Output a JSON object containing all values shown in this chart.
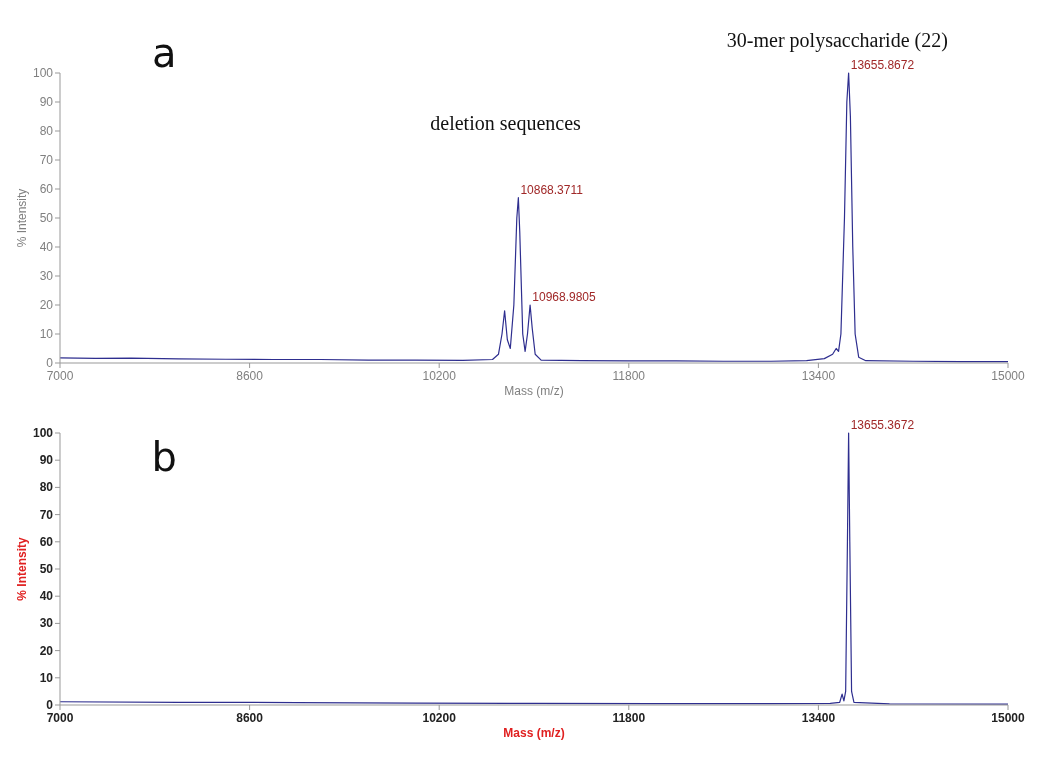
{
  "chart_data": [
    {
      "type": "line",
      "xlabel": "Mass (m/z)",
      "ylabel": "% Intensity",
      "xlim": [
        7000,
        15000
      ],
      "xticks": [
        7000,
        8600,
        10200,
        11800,
        13400,
        15000
      ],
      "ylim": [
        0,
        100
      ],
      "yticks": [
        0,
        10,
        20,
        30,
        40,
        50,
        60,
        70,
        80,
        90,
        100
      ],
      "annotations": [
        "a",
        "deletion sequences",
        "30-mer polysaccharide (22)",
        {
          "text": "10868.3711",
          "x": 10868.3711,
          "y": 57
        },
        {
          "text": "10968.9805",
          "x": 10968.9805,
          "y": 20
        },
        {
          "text": "13655.8672",
          "x": 13655.8672,
          "y": 100
        }
      ],
      "series": [
        {
          "color": "#2e2e8f",
          "x": [
            7000,
            7300,
            7600,
            8000,
            8400,
            8800,
            9200,
            9600,
            10000,
            10400,
            10650,
            10700,
            10730,
            10752,
            10775,
            10800,
            10830,
            10855,
            10868,
            10880,
            10905,
            10925,
            10945,
            10967,
            10985,
            11010,
            11060,
            11400,
            11800,
            12200,
            12600,
            13000,
            13300,
            13450,
            13520,
            13550,
            13570,
            13590,
            13620,
            13640,
            13655,
            13670,
            13690,
            13710,
            13740,
            13800,
            14200,
            14600,
            15000
          ],
          "values": [
            1.8,
            1.6,
            1.7,
            1.4,
            1.3,
            1.2,
            1.2,
            1.0,
            1.0,
            0.9,
            1.2,
            3,
            10,
            18,
            8,
            5,
            20,
            50,
            57,
            45,
            10,
            4,
            10,
            20,
            12,
            3,
            1,
            0.8,
            0.7,
            0.7,
            0.6,
            0.6,
            0.8,
            1.5,
            3,
            5,
            4,
            10,
            50,
            90,
            100,
            85,
            40,
            10,
            2,
            0.8,
            0.6,
            0.5,
            0.5
          ]
        }
      ]
    },
    {
      "type": "line",
      "xlabel": "Mass (m/z)",
      "ylabel": "% Intensity",
      "xlim": [
        7000,
        15000
      ],
      "xticks": [
        7000,
        8600,
        10200,
        11800,
        13400,
        15000
      ],
      "ylim": [
        0,
        100
      ],
      "yticks": [
        0,
        10,
        20,
        30,
        40,
        50,
        60,
        70,
        80,
        90,
        100
      ],
      "annotations": [
        "b",
        {
          "text": "13655.3672",
          "x": 13655.3672,
          "y": 100
        }
      ],
      "series": [
        {
          "color": "#2e2e8f",
          "x": [
            7000,
            8000,
            9000,
            10000,
            11000,
            12000,
            13000,
            13500,
            13580,
            13600,
            13615,
            13630,
            13645,
            13655,
            13665,
            13680,
            13700,
            14000,
            15000
          ],
          "values": [
            1.2,
            1.0,
            0.9,
            0.7,
            0.6,
            0.5,
            0.5,
            0.6,
            1,
            4,
            1.5,
            5,
            60,
            100,
            60,
            5,
            1,
            0.4,
            0.3
          ]
        }
      ]
    }
  ]
}
